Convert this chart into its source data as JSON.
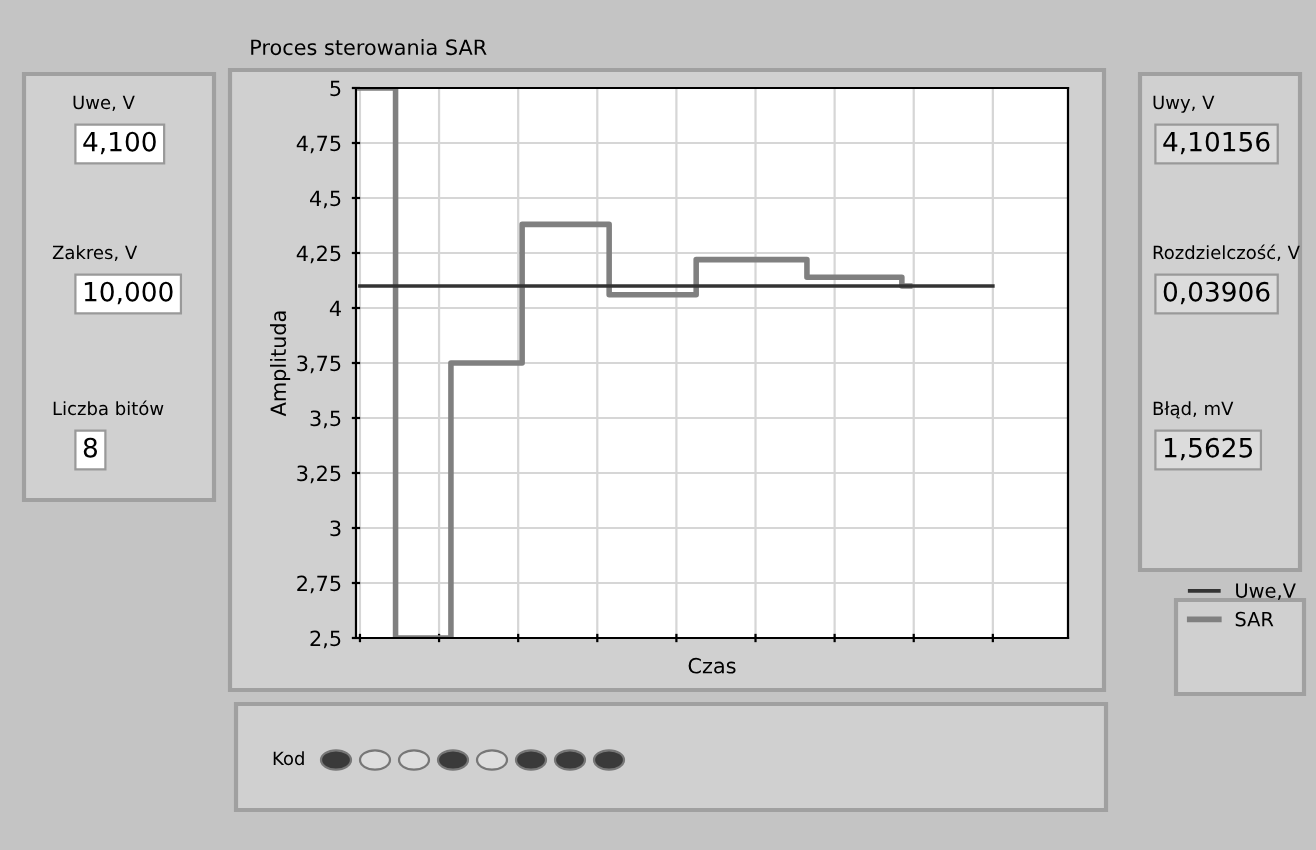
{
  "chart_data": {
    "type": "step",
    "title": "Proces sterowania SAR",
    "xlabel": "Czas",
    "ylabel": "Amplituda",
    "categories": [
      null,
      null,
      null,
      null,
      null,
      null,
      null,
      null,
      null,
      null,
      null,
      null,
      null,
      null,
      null,
      null,
      null,
      null,
      null,
      null,
      null,
      null,
      null,
      null,
      null,
      null,
      null,
      null,
      null,
      null,
      null,
      null,
      null,
      null,
      null,
      null,
      null,
      null,
      null,
      null,
      null,
      null,
      null,
      null,
      null,
      null,
      null,
      null,
      null,
      null,
      null,
      null,
      null,
      null,
      null,
      null,
      null,
      null,
      null,
      null,
      null,
      null,
      null,
      null,
      null,
      null,
      null,
      null,
      null,
      null,
      null,
      null,
      null,
      null,
      null,
      null,
      null,
      null,
      null,
      null,
      null,
      null,
      null,
      null,
      null,
      null,
      null,
      null,
      null,
      null
    ],
    "ylim": [
      2.5,
      5
    ],
    "yticks": [
      {
        "value": 2.5,
        "label": "2,5"
      },
      {
        "value": 2.75,
        "label": "2,75"
      },
      {
        "value": 3,
        "label": "3"
      },
      {
        "value": 3.25,
        "label": "3,25"
      },
      {
        "value": 3.5,
        "label": "3,5"
      },
      {
        "value": 3.75,
        "label": "3,75"
      },
      {
        "value": 4,
        "label": "4"
      },
      {
        "value": 4.25,
        "label": "4,25"
      },
      {
        "value": 4.5,
        "label": "4,5"
      },
      {
        "value": 4.75,
        "label": "4,75"
      },
      {
        "value": 5,
        "label": "5"
      }
    ],
    "grid": true,
    "legend": "bottom right",
    "series": [
      {
        "name": "Uwe,V",
        "type": "line",
        "color": "#333333",
        "values": [
          4.1,
          4.1,
          4.1,
          4.1,
          4.1,
          4.1,
          4.1,
          4.1,
          4.1,
          4.1,
          4.1,
          4.1,
          4.1,
          4.1,
          4.1,
          4.1,
          4.1,
          4.1,
          4.1,
          4.1,
          4.1,
          4.1,
          4.1,
          4.1,
          4.1,
          4.1,
          4.1,
          4.1,
          4.1,
          4.1,
          4.1,
          4.1,
          4.1,
          4.1,
          4.1,
          4.1,
          4.1,
          4.1,
          4.1,
          4.1,
          4.1,
          4.1,
          4.1,
          4.1,
          4.1,
          4.1,
          4.1,
          4.1,
          4.1,
          4.1,
          4.1,
          4.1,
          4.1,
          4.1,
          4.1,
          4.1,
          4.1,
          4.1,
          4.1,
          4.1,
          4.1,
          4.1,
          4.1,
          4.1,
          4.1,
          4.1,
          4.1,
          4.1,
          4.1,
          4.1,
          4.1,
          4.1,
          4.1,
          4.1,
          4.1,
          4.1,
          4.1,
          4.1,
          4.1,
          4.1,
          4.1,
          null,
          null,
          null,
          null,
          null,
          null,
          null,
          null,
          null
        ]
      },
      {
        "name": "SAR",
        "color": "#808080",
        "values": [
          5,
          5,
          5,
          5,
          5,
          2.5,
          2.5,
          2.5,
          2.5,
          2.5,
          2.5,
          2.5,
          3.75,
          3.75,
          3.75,
          3.75,
          3.75,
          3.75,
          3.75,
          3.75,
          3.75,
          4.38,
          4.38,
          4.38,
          4.38,
          4.38,
          4.38,
          4.38,
          4.38,
          4.38,
          4.38,
          4.38,
          4.06,
          4.06,
          4.06,
          4.06,
          4.06,
          4.06,
          4.06,
          4.06,
          4.06,
          4.06,
          4.06,
          4.22,
          4.22,
          4.22,
          4.22,
          4.22,
          4.22,
          4.22,
          4.22,
          4.22,
          4.22,
          4.22,
          4.22,
          4.22,
          4.22,
          4.14,
          4.14,
          4.14,
          4.14,
          4.14,
          4.14,
          4.14,
          4.14,
          4.14,
          4.14,
          4.14,
          4.14,
          4.1,
          null,
          null,
          null,
          null,
          null,
          null,
          null,
          null,
          null,
          null,
          null,
          null,
          null,
          null,
          null,
          null,
          null,
          null,
          null,
          null
        ]
      }
    ],
    "annotations": [
      "Uwe, V",
      "4,100",
      "Zakres, V",
      "10,000",
      "Liczba bitów",
      "8",
      "Uwy, V",
      "4,10156",
      "Rozdzielczość, V",
      "0,03906",
      "Błąd, mV",
      "1,5625",
      "Kod"
    ]
  }
}
